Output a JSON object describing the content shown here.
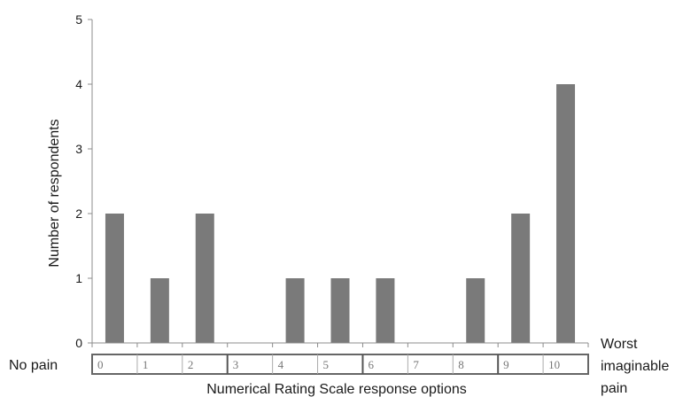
{
  "chart_data": {
    "type": "bar",
    "categories": [
      "0",
      "1",
      "2",
      "3",
      "4",
      "5",
      "6",
      "7",
      "8",
      "9",
      "10"
    ],
    "values": [
      2,
      1,
      2,
      0,
      1,
      1,
      1,
      0,
      1,
      2,
      4
    ],
    "ylabel": "Number of respondents",
    "xlabel": "Numerical Rating Scale response options",
    "ylim": [
      0,
      5
    ],
    "yticks": [
      "0",
      "1",
      "2",
      "3",
      "4",
      "5"
    ],
    "left_anchor": "No pain",
    "right_anchor_lines": [
      "Worst",
      "imaginable",
      "pain"
    ],
    "grid": false,
    "colors": {
      "bar": "#7a7a7a",
      "axis": "#8c8c8c",
      "text": "#1a1a1a"
    }
  }
}
